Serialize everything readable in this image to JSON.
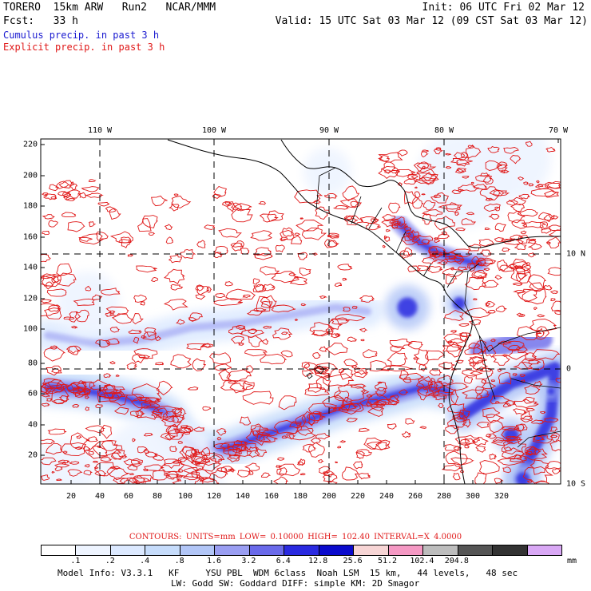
{
  "header": {
    "model_title": "TORERO  15km ARW   Run2   NCAR/MMM",
    "forecast": "Fcst:   33 h",
    "init": "Init: 06 UTC Fri 02 Mar 12",
    "valid": "Valid: 15 UTC Sat 03 Mar 12 (09 CST Sat 03 Mar 12)",
    "cumulus_label": "Cumulus precip. in past 3 h",
    "explicit_label": "Explicit precip. in past 3 h"
  },
  "colors": {
    "cumulus": "#1a1ad0",
    "explicit_contour": "#e01818",
    "coast": "#000000"
  },
  "longitude_labels": [
    "110 W",
    "100 W",
    "90 W",
    "80 W",
    "70 W"
  ],
  "latitude_labels": [
    "10 N",
    "0",
    "10 S"
  ],
  "y_axis_ticks": [
    "220",
    "200",
    "180",
    "160",
    "140",
    "120",
    "100",
    "80",
    "60",
    "40",
    "20"
  ],
  "x_axis_ticks": [
    "20",
    "40",
    "60",
    "80",
    "100",
    "120",
    "140",
    "160",
    "180",
    "200",
    "220",
    "240",
    "260",
    "280",
    "300",
    "320"
  ],
  "legend": {
    "contours_text": "CONTOURS:  UNITS=mm  LOW= 0.10000      HIGH=  102.40      INTERVAL=X  4.0000",
    "colorbar_colors": [
      "#ffffff",
      "#eef4ff",
      "#dce9ff",
      "#c6dcfb",
      "#b2c6f7",
      "#9a9ef2",
      "#6a6aea",
      "#2a2ae0",
      "#0a0acc",
      "#f7d5d5",
      "#f599c4",
      "#bdbdbd",
      "#555555",
      "#333333",
      "#d9a8f5"
    ],
    "colorbar_labels": [
      ".1",
      ".2",
      ".4",
      ".8",
      "1.6",
      "3.2",
      "6.4",
      "12.8",
      "25.6",
      "51.2",
      "102.4",
      "204.8"
    ],
    "unit": "mm"
  },
  "model_info": {
    "line1": "Model Info: V3.3.1   KF     YSU PBL  WDM 6class  Noah LSM  15 km,   44 levels,   48 sec",
    "line2": "LW: Godd SW: Goddard DIFF: simple KM: 2D Smagor"
  }
}
